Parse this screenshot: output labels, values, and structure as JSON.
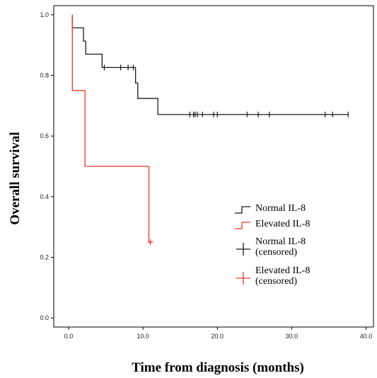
{
  "chart_data": {
    "type": "line",
    "subtype": "kaplan-meier step",
    "title": "",
    "xlabel": "Time from diagnosis (months)",
    "ylabel": "Overall survival",
    "xlim": [
      -2,
      41
    ],
    "ylim": [
      -0.03,
      1.03
    ],
    "xticks": [
      "0.0",
      "10.0",
      "20.0",
      "30.0",
      "40.0"
    ],
    "yticks": [
      "0.0",
      "0.2",
      "0.4",
      "0.6",
      "0.8",
      "1.0"
    ],
    "grid": false,
    "legend_position": "bottom-right",
    "series": [
      {
        "name": "Normal IL-8",
        "color": "#1a1a1a",
        "steps": [
          [
            0.5,
            1.0
          ],
          [
            0.5,
            0.957
          ],
          [
            2.0,
            0.913
          ],
          [
            2.3,
            0.87
          ],
          [
            4.5,
            0.826
          ],
          [
            9.0,
            0.775
          ],
          [
            9.3,
            0.724
          ],
          [
            12.0,
            0.671
          ],
          [
            37.6,
            0.671
          ]
        ],
        "censored_x": [
          4.8,
          7.0,
          8.0,
          8.7,
          16.3,
          16.8,
          17.0,
          17.3,
          18.0,
          19.5,
          20.0,
          24.0,
          25.5,
          27.0,
          34.5,
          35.5,
          37.6
        ]
      },
      {
        "name": "Elevated IL-8",
        "color": "#e8382e",
        "steps": [
          [
            0.5,
            1.0
          ],
          [
            0.5,
            0.75
          ],
          [
            2.2,
            0.75
          ],
          [
            2.2,
            0.5
          ],
          [
            10.8,
            0.5
          ],
          [
            10.8,
            0.25
          ],
          [
            11.2,
            0.25
          ]
        ],
        "censored_x": [
          11.0
        ]
      }
    ],
    "legend": [
      {
        "label": "Normal IL-8",
        "marker": "step",
        "color": "#1a1a1a"
      },
      {
        "label": "Elevated IL-8",
        "marker": "step",
        "color": "#e8382e"
      },
      {
        "label": "Normal IL-8",
        "label2": "(censored)",
        "marker": "cross",
        "color": "#1a1a1a"
      },
      {
        "label": "Elevated IL-8",
        "label2": "(censored)",
        "marker": "cross",
        "color": "#e8382e"
      }
    ]
  }
}
